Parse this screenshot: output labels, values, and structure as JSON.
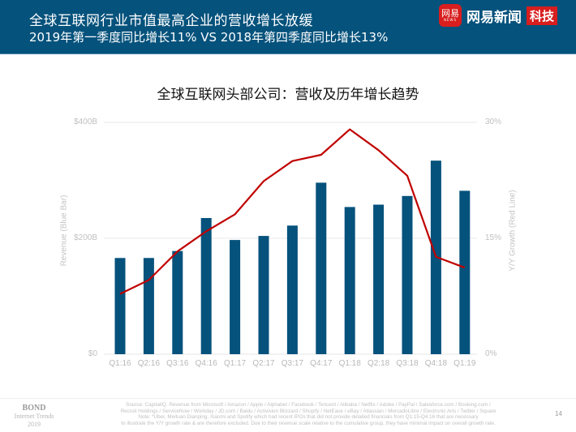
{
  "header": {
    "title_line1": "全球互联网行业市值最高企业的营收增长放缓",
    "title_line2": "2019年第一季度同比增长11% VS 2018年第四季度同比增长13%",
    "background_color": "#05527c"
  },
  "brand": {
    "logo_text": "网易",
    "logo_subtext": "NEWS",
    "name": "网易新闻",
    "tag": "科技",
    "accent_color": "#d81e1e"
  },
  "chart_data": {
    "type": "bar+line",
    "title": "全球互联网头部公司：营收及历年增长趋势",
    "categories": [
      "Q1:16",
      "Q2:16",
      "Q3:16",
      "Q4:16",
      "Q1:17",
      "Q2:17",
      "Q3:17",
      "Q4:17",
      "Q1:18",
      "Q2:18",
      "Q3:18",
      "Q4:18",
      "Q1:19"
    ],
    "series": [
      {
        "name": "Revenue (Blue Bar)",
        "type": "bar",
        "axis": "left",
        "unit": "$B",
        "color": "#05527c",
        "values": [
          166,
          166,
          178,
          235,
          197,
          204,
          222,
          296,
          254,
          258,
          273,
          334,
          282
        ]
      },
      {
        "name": "Y/Y Growth (Red Line)",
        "type": "line",
        "axis": "right",
        "unit": "%",
        "color": "#c00000",
        "values": [
          7.8,
          9.6,
          13.3,
          15.9,
          18.1,
          22.4,
          25.0,
          25.8,
          29.1,
          26.4,
          23.1,
          12.6,
          11.2
        ]
      }
    ],
    "ylabel": "Revenue (Blue Bar)",
    "ylabel_right": "Y/Y Growth (Red Line)",
    "ylim": [
      0,
      400
    ],
    "ylim_right": [
      0,
      30
    ],
    "yticks": [
      "$0",
      "$200B",
      "$400B"
    ],
    "yticks_right": [
      "0%",
      "15%",
      "30%"
    ],
    "grid": true,
    "legend": "none"
  },
  "footer": {
    "bond_line1": "BOND",
    "bond_line2": "Internet Trends",
    "bond_line3": "2019",
    "source_lines": [
      "Source: CapitalIQ. Revenue from Microsoft / Amazon / Apple / Alphabet / Facebook / Tencent / Alibaba / Netflix / Adobe / PayPal / Salesforce.com / Booking.com /",
      "Recruit Holdings / ServiceNow / Workday / JD.com / Baidu / Activision Blizzard / Shopify / NetEase / eBay / Atlassian / MercadoLibre / Electronic Arts / Twitter / Square",
      "Note: *Uber, Meituan Dianping, Xiaomi and Spotify which had recent IPOs that did not provide detailed financials from Q1:15-Q4:16 that are necessary",
      "to illustrate the Y/Y growth rate & are therefore excluded. Due to their revenue scale relative to the cumulative group, they have minimal impact on overall growth rate."
    ],
    "page_number": "14"
  }
}
